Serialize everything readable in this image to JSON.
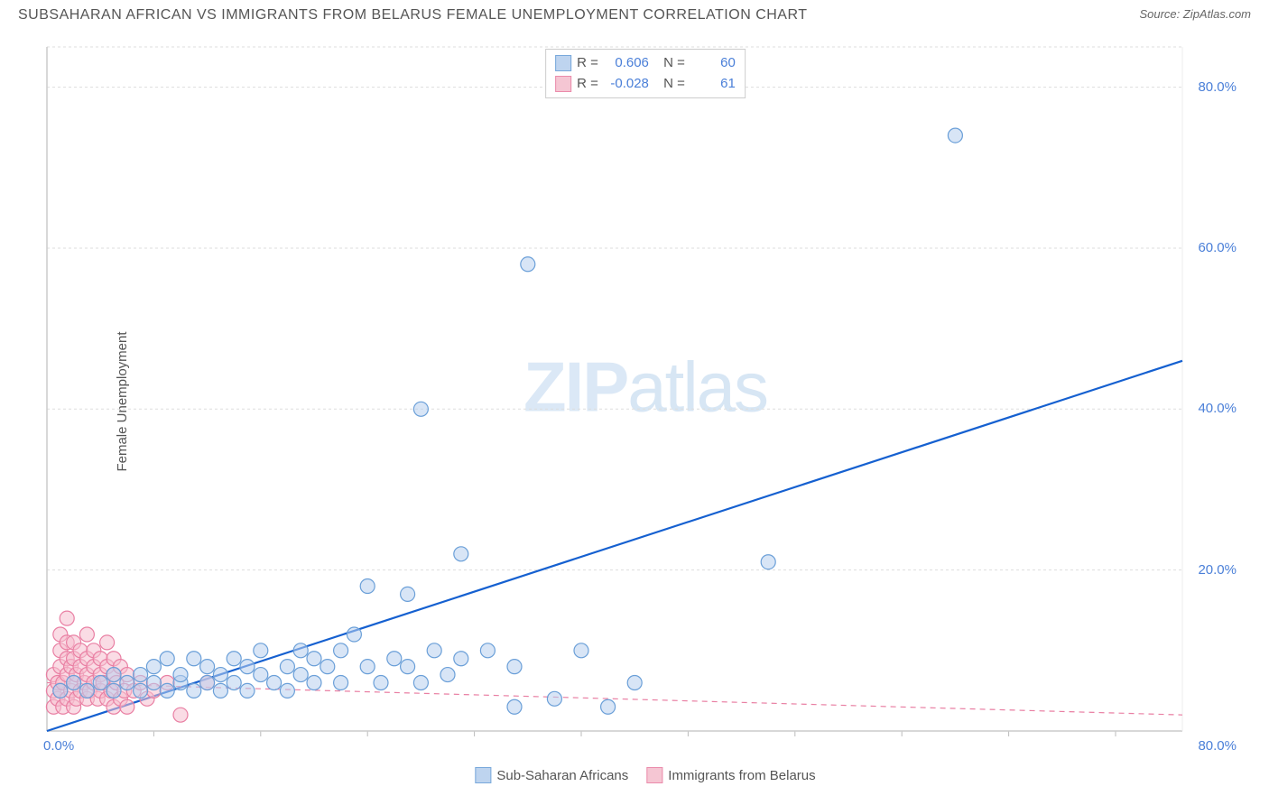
{
  "header": {
    "title": "SUBSAHARAN AFRICAN VS IMMIGRANTS FROM BELARUS FEMALE UNEMPLOYMENT CORRELATION CHART",
    "source": "Source: ZipAtlas.com"
  },
  "watermark": {
    "zip": "ZIP",
    "atlas": "atlas"
  },
  "y_axis_label": "Female Unemployment",
  "chart": {
    "type": "scatter",
    "xlim": [
      0,
      85
    ],
    "ylim": [
      0,
      85
    ],
    "x_ticks_label": {
      "min": "0.0%",
      "max": "80.0%"
    },
    "y_ticks": [
      {
        "v": 20,
        "label": "20.0%"
      },
      {
        "v": 40,
        "label": "40.0%"
      },
      {
        "v": 60,
        "label": "60.0%"
      },
      {
        "v": 80,
        "label": "80.0%"
      }
    ],
    "x_gridlines": [
      8,
      16,
      24,
      32,
      40,
      48,
      56,
      64,
      72,
      80
    ],
    "background_color": "#ffffff",
    "grid_color": "#dddddd",
    "border_color": "#cccccc",
    "marker_radius": 8,
    "marker_stroke_width": 1.2,
    "trend_line_width_blue": 2.2,
    "trend_line_width_pink": 1.2,
    "trend_dash_pink": "6,5"
  },
  "series": {
    "blue": {
      "label": "Sub-Saharan Africans",
      "fill": "#b8d0ee",
      "stroke": "#6a9fd8",
      "fill_opacity": 0.55,
      "trend_color": "#1560d0",
      "trend": {
        "x1": 0,
        "y1": 0,
        "x2": 85,
        "y2": 46
      },
      "points": [
        [
          1,
          5
        ],
        [
          2,
          6
        ],
        [
          3,
          5
        ],
        [
          4,
          6
        ],
        [
          5,
          5
        ],
        [
          5,
          7
        ],
        [
          6,
          6
        ],
        [
          7,
          5
        ],
        [
          7,
          7
        ],
        [
          8,
          6
        ],
        [
          8,
          8
        ],
        [
          9,
          5
        ],
        [
          9,
          9
        ],
        [
          10,
          6
        ],
        [
          10,
          7
        ],
        [
          11,
          5
        ],
        [
          11,
          9
        ],
        [
          12,
          6
        ],
        [
          12,
          8
        ],
        [
          13,
          5
        ],
        [
          13,
          7
        ],
        [
          14,
          6
        ],
        [
          14,
          9
        ],
        [
          15,
          5
        ],
        [
          15,
          8
        ],
        [
          16,
          7
        ],
        [
          16,
          10
        ],
        [
          17,
          6
        ],
        [
          18,
          8
        ],
        [
          18,
          5
        ],
        [
          19,
          7
        ],
        [
          19,
          10
        ],
        [
          20,
          6
        ],
        [
          20,
          9
        ],
        [
          21,
          8
        ],
        [
          22,
          10
        ],
        [
          22,
          6
        ],
        [
          23,
          12
        ],
        [
          24,
          8
        ],
        [
          24,
          18
        ],
        [
          25,
          6
        ],
        [
          26,
          9
        ],
        [
          27,
          8
        ],
        [
          27,
          17
        ],
        [
          28,
          6
        ],
        [
          28,
          40
        ],
        [
          29,
          10
        ],
        [
          30,
          7
        ],
        [
          31,
          22
        ],
        [
          31,
          9
        ],
        [
          33,
          10
        ],
        [
          35,
          8
        ],
        [
          35,
          3
        ],
        [
          36,
          58
        ],
        [
          38,
          4
        ],
        [
          40,
          10
        ],
        [
          42,
          3
        ],
        [
          44,
          6
        ],
        [
          54,
          21
        ],
        [
          68,
          74
        ]
      ]
    },
    "pink": {
      "label": "Immigrants from Belarus",
      "fill": "#f5c0cf",
      "stroke": "#e97fa3",
      "fill_opacity": 0.55,
      "trend_color": "#e97fa3",
      "trend": {
        "x1": 0,
        "y1": 6,
        "x2": 85,
        "y2": 2
      },
      "points": [
        [
          0.5,
          3
        ],
        [
          0.5,
          5
        ],
        [
          0.5,
          7
        ],
        [
          0.8,
          4
        ],
        [
          0.8,
          6
        ],
        [
          1,
          5
        ],
        [
          1,
          8
        ],
        [
          1,
          10
        ],
        [
          1,
          12
        ],
        [
          1.2,
          3
        ],
        [
          1.2,
          6
        ],
        [
          1.5,
          4
        ],
        [
          1.5,
          7
        ],
        [
          1.5,
          9
        ],
        [
          1.5,
          11
        ],
        [
          1.5,
          14
        ],
        [
          1.8,
          5
        ],
        [
          1.8,
          8
        ],
        [
          2,
          3
        ],
        [
          2,
          6
        ],
        [
          2,
          9
        ],
        [
          2,
          11
        ],
        [
          2.2,
          4
        ],
        [
          2.2,
          7
        ],
        [
          2.5,
          5
        ],
        [
          2.5,
          8
        ],
        [
          2.5,
          10
        ],
        [
          2.8,
          6
        ],
        [
          3,
          4
        ],
        [
          3,
          7
        ],
        [
          3,
          9
        ],
        [
          3,
          12
        ],
        [
          3.2,
          5
        ],
        [
          3.5,
          6
        ],
        [
          3.5,
          8
        ],
        [
          3.5,
          10
        ],
        [
          3.8,
          4
        ],
        [
          4,
          7
        ],
        [
          4,
          5
        ],
        [
          4,
          9
        ],
        [
          4.2,
          6
        ],
        [
          4.5,
          4
        ],
        [
          4.5,
          8
        ],
        [
          4.5,
          11
        ],
        [
          4.8,
          5
        ],
        [
          5,
          7
        ],
        [
          5,
          3
        ],
        [
          5,
          9
        ],
        [
          5.2,
          6
        ],
        [
          5.5,
          4
        ],
        [
          5.5,
          8
        ],
        [
          5.8,
          5
        ],
        [
          6,
          7
        ],
        [
          6,
          3
        ],
        [
          6.5,
          5
        ],
        [
          7,
          6
        ],
        [
          7.5,
          4
        ],
        [
          8,
          5
        ],
        [
          9,
          6
        ],
        [
          10,
          2
        ],
        [
          12,
          6
        ]
      ]
    }
  },
  "legend_top": {
    "rows": [
      {
        "swatch": "blue",
        "r_label": "R =",
        "r_value": "0.606",
        "n_label": "N =",
        "n_value": "60"
      },
      {
        "swatch": "pink",
        "r_label": "R =",
        "r_value": "-0.028",
        "n_label": "N =",
        "n_value": "61"
      }
    ]
  },
  "legend_bottom": {
    "items": [
      {
        "swatch": "blue",
        "label": "Sub-Saharan Africans"
      },
      {
        "swatch": "pink",
        "label": "Immigrants from Belarus"
      }
    ]
  }
}
